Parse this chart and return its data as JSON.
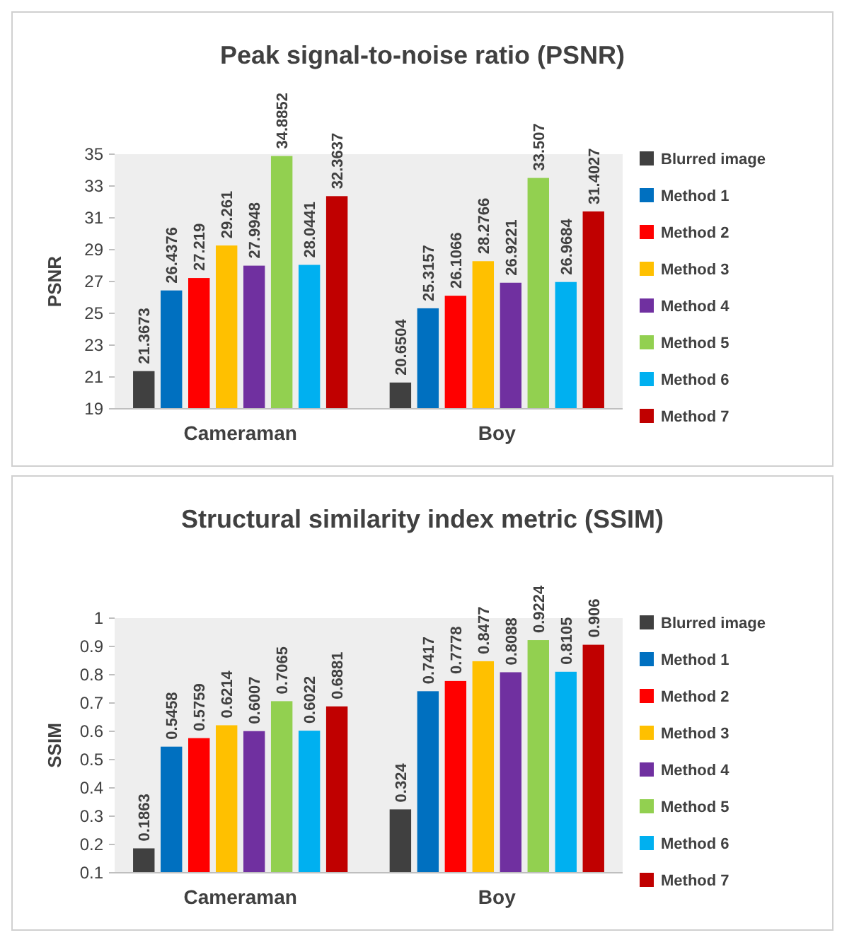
{
  "chart_data": [
    {
      "type": "bar",
      "title": "Peak signal-to-noise ratio (PSNR)",
      "ylabel": "PSNR",
      "categories": [
        "Cameraman",
        "Boy"
      ],
      "series": [
        {
          "name": "Blurred image",
          "color": "#404040",
          "values": [
            21.3673,
            20.6504
          ]
        },
        {
          "name": "Method 1",
          "color": "#0070c0",
          "values": [
            26.4376,
            25.3157
          ]
        },
        {
          "name": "Method 2",
          "color": "#ff0000",
          "values": [
            27.219,
            26.1066
          ]
        },
        {
          "name": "Method 3",
          "color": "#ffc000",
          "values": [
            29.261,
            28.2766
          ]
        },
        {
          "name": "Method 4",
          "color": "#7030a0",
          "values": [
            27.9948,
            26.9221
          ]
        },
        {
          "name": "Method 5",
          "color": "#92d050",
          "values": [
            34.8852,
            33.507
          ]
        },
        {
          "name": "Method 6",
          "color": "#00b0f0",
          "values": [
            28.0441,
            26.9684
          ]
        },
        {
          "name": "Method 7",
          "color": "#c00000",
          "values": [
            32.3637,
            31.4027
          ]
        }
      ],
      "ylim": [
        19,
        35
      ],
      "yticks": [
        19,
        21,
        23,
        25,
        27,
        29,
        31,
        33,
        35
      ],
      "data_labels": true,
      "legend": "right",
      "grid": false
    },
    {
      "type": "bar",
      "title": "Structural similarity index metric (SSIM)",
      "ylabel": "SSIM",
      "categories": [
        "Cameraman",
        "Boy"
      ],
      "series": [
        {
          "name": "Blurred image",
          "color": "#404040",
          "values": [
            0.1863,
            0.324
          ]
        },
        {
          "name": "Method 1",
          "color": "#0070c0",
          "values": [
            0.5458,
            0.7417
          ]
        },
        {
          "name": "Method 2",
          "color": "#ff0000",
          "values": [
            0.5759,
            0.7778
          ]
        },
        {
          "name": "Method 3",
          "color": "#ffc000",
          "values": [
            0.6214,
            0.8477
          ]
        },
        {
          "name": "Method 4",
          "color": "#7030a0",
          "values": [
            0.6007,
            0.8088
          ]
        },
        {
          "name": "Method 5",
          "color": "#92d050",
          "values": [
            0.7065,
            0.9224
          ]
        },
        {
          "name": "Method 6",
          "color": "#00b0f0",
          "values": [
            0.6022,
            0.8105
          ]
        },
        {
          "name": "Method 7",
          "color": "#c00000",
          "values": [
            0.6881,
            0.906
          ]
        }
      ],
      "ylim": [
        0.1,
        1
      ],
      "yticks": [
        0.1,
        0.2,
        0.3,
        0.4,
        0.5,
        0.6,
        0.7,
        0.8,
        0.9,
        1
      ],
      "data_labels": true,
      "legend": "right",
      "grid": false
    }
  ]
}
